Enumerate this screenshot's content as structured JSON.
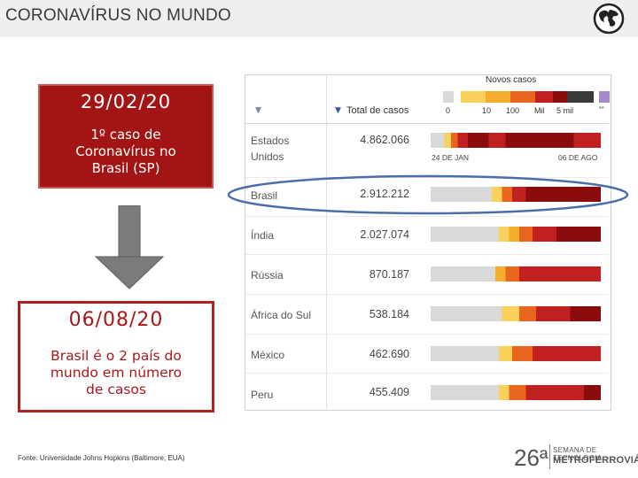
{
  "header": {
    "title": "CORONAVÍRUS NO MUNDO",
    "icon": "globe-icon"
  },
  "first_case": {
    "date": "29/02/20",
    "text": "1º caso de\nCoronavírus no\nBrasil (SP)"
  },
  "arrow": {
    "icon": "arrow-down-icon"
  },
  "milestone": {
    "date": "06/08/20",
    "text": "Brasil é o 2 país do\nmundo em número\nde casos"
  },
  "source": "Fonte: Universidade Johns Hopkins (Baltimore, EUA)",
  "table": {
    "sort_marker": "▼",
    "total_header": "Total de casos",
    "legend": {
      "title": "Novos casos",
      "labels": [
        "0",
        "10",
        "100",
        "Mil",
        "5 mil",
        "**"
      ],
      "colors": [
        "#d9d9d9",
        "#f8d05a",
        "#f5ae2b",
        "#e8661e",
        "#c02020",
        "#8a0c0c",
        "#3a3a3a",
        "#a58acb"
      ]
    },
    "range_start": "24 DE JAN",
    "range_end": "06 DE AGO",
    "rows": [
      {
        "country": "Estados\nUnidos",
        "total": "4.862.066"
      },
      {
        "country": "Brasil",
        "total": "2.912.212"
      },
      {
        "country": "Índia",
        "total": "2.027.074"
      },
      {
        "country": "Rússia",
        "total": "870.187"
      },
      {
        "country": "África do Sul",
        "total": "538.184"
      },
      {
        "country": "México",
        "total": "462.690"
      },
      {
        "country": "Peru",
        "total": "455.409"
      }
    ]
  },
  "logo": {
    "number": "26ª",
    "line1": "SEMANA DE TECNOLOGIA",
    "line2": "METROFERROVIÁRIA"
  }
}
